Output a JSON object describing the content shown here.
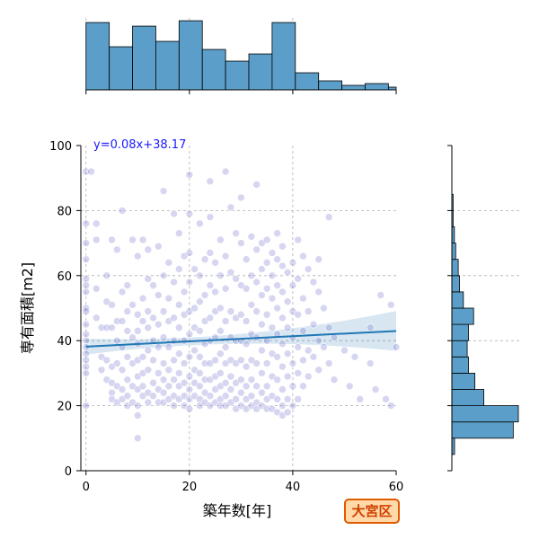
{
  "badge": "大宮区",
  "chart_data": {
    "type": "scatter",
    "xlabel": "築年数[年]",
    "ylabel": "専有面積[m2]",
    "xlim": [
      -1,
      60
    ],
    "ylim": [
      0,
      100
    ],
    "xticks": [
      "0",
      "20",
      "40",
      "60"
    ],
    "yticks": [
      "0",
      "20",
      "40",
      "60",
      "80",
      "100"
    ],
    "grid": true,
    "regression": {
      "slope": 0.08,
      "intercept": 38.17,
      "label": "y=0.08x+38.17",
      "color": "#1f77b4"
    },
    "point_color": "#6a6acd",
    "hist_color": "#5b9ec9",
    "x_hist": {
      "bin_edges": [
        0,
        4.5,
        9,
        13.5,
        18,
        22.5,
        27,
        31.5,
        36,
        40.5,
        45,
        49.5,
        54,
        58.5,
        60
      ],
      "counts": [
        75,
        48,
        71,
        54,
        77,
        45,
        32,
        40,
        75,
        19,
        10,
        5,
        7,
        3
      ]
    },
    "y_hist": {
      "bin_edges": [
        10,
        15,
        20,
        25,
        30,
        35,
        40,
        45,
        50,
        55,
        60,
        65,
        70,
        75,
        80,
        85,
        90,
        95,
        100
      ],
      "counts": [
        48,
        52,
        25,
        18,
        13,
        12,
        13,
        17,
        9,
        6,
        5,
        3,
        2,
        1,
        1,
        0,
        0,
        0
      ]
    },
    "points": [
      [
        0,
        92
      ],
      [
        1,
        92
      ],
      [
        0,
        76
      ],
      [
        0,
        70
      ],
      [
        0,
        65
      ],
      [
        0,
        59
      ],
      [
        0,
        57
      ],
      [
        0,
        55
      ],
      [
        0,
        50
      ],
      [
        0,
        49
      ],
      [
        0,
        45
      ],
      [
        0,
        42
      ],
      [
        0,
        40
      ],
      [
        0,
        38
      ],
      [
        0,
        36
      ],
      [
        0,
        34
      ],
      [
        0,
        32
      ],
      [
        0,
        30
      ],
      [
        0,
        20
      ],
      [
        2,
        76
      ],
      [
        2,
        71
      ],
      [
        2,
        56
      ],
      [
        2,
        47
      ],
      [
        3,
        44
      ],
      [
        3,
        35
      ],
      [
        3,
        31
      ],
      [
        4,
        60
      ],
      [
        4,
        52
      ],
      [
        4,
        44
      ],
      [
        4,
        34
      ],
      [
        4,
        28
      ],
      [
        5,
        71
      ],
      [
        5,
        51
      ],
      [
        5,
        44
      ],
      [
        5,
        32
      ],
      [
        5,
        27
      ],
      [
        5,
        24
      ],
      [
        5,
        22
      ],
      [
        6,
        68
      ],
      [
        6,
        46
      ],
      [
        6,
        40
      ],
      [
        6,
        33
      ],
      [
        6,
        26
      ],
      [
        6,
        21
      ],
      [
        7,
        80
      ],
      [
        7,
        55
      ],
      [
        7,
        46
      ],
      [
        7,
        38
      ],
      [
        7,
        31
      ],
      [
        7,
        25
      ],
      [
        7,
        22
      ],
      [
        8,
        57
      ],
      [
        8,
        49
      ],
      [
        8,
        43
      ],
      [
        8,
        35
      ],
      [
        8,
        28
      ],
      [
        8,
        23
      ],
      [
        8,
        20
      ],
      [
        9,
        71
      ],
      [
        9,
        51
      ],
      [
        9,
        41
      ],
      [
        9,
        33
      ],
      [
        9,
        26
      ],
      [
        9,
        21
      ],
      [
        10,
        66
      ],
      [
        10,
        48
      ],
      [
        10,
        43
      ],
      [
        10,
        39
      ],
      [
        10,
        34
      ],
      [
        10,
        29
      ],
      [
        10,
        25
      ],
      [
        10,
        20
      ],
      [
        10,
        17
      ],
      [
        10,
        10
      ],
      [
        11,
        71
      ],
      [
        11,
        53
      ],
      [
        11,
        46
      ],
      [
        11,
        35
      ],
      [
        11,
        30
      ],
      [
        11,
        26
      ],
      [
        11,
        23
      ],
      [
        12,
        68
      ],
      [
        12,
        59
      ],
      [
        12,
        49
      ],
      [
        12,
        44
      ],
      [
        12,
        37
      ],
      [
        12,
        31
      ],
      [
        12,
        24
      ],
      [
        12,
        21
      ],
      [
        13,
        57
      ],
      [
        13,
        47
      ],
      [
        13,
        40
      ],
      [
        13,
        34
      ],
      [
        13,
        27
      ],
      [
        13,
        23
      ],
      [
        14,
        69
      ],
      [
        14,
        54
      ],
      [
        14,
        45
      ],
      [
        14,
        38
      ],
      [
        14,
        30
      ],
      [
        14,
        25
      ],
      [
        14,
        21
      ],
      [
        15,
        86
      ],
      [
        15,
        60
      ],
      [
        15,
        49
      ],
      [
        15,
        41
      ],
      [
        15,
        33
      ],
      [
        15,
        28
      ],
      [
        15,
        24
      ],
      [
        15,
        21
      ],
      [
        16,
        64
      ],
      [
        16,
        53
      ],
      [
        16,
        46
      ],
      [
        16,
        38
      ],
      [
        16,
        31
      ],
      [
        16,
        26
      ],
      [
        16,
        22
      ],
      [
        17,
        79
      ],
      [
        17,
        58
      ],
      [
        17,
        47
      ],
      [
        17,
        40
      ],
      [
        17,
        34
      ],
      [
        17,
        28
      ],
      [
        17,
        23
      ],
      [
        17,
        20
      ],
      [
        18,
        73
      ],
      [
        18,
        62
      ],
      [
        18,
        51
      ],
      [
        18,
        44
      ],
      [
        18,
        36
      ],
      [
        18,
        30
      ],
      [
        18,
        26
      ],
      [
        18,
        22
      ],
      [
        19,
        66
      ],
      [
        19,
        55
      ],
      [
        19,
        48
      ],
      [
        19,
        40
      ],
      [
        19,
        33
      ],
      [
        19,
        27
      ],
      [
        19,
        23
      ],
      [
        19,
        20
      ],
      [
        20,
        91
      ],
      [
        20,
        79
      ],
      [
        20,
        67
      ],
      [
        20,
        58
      ],
      [
        20,
        49
      ],
      [
        20,
        42
      ],
      [
        20,
        35
      ],
      [
        20,
        29
      ],
      [
        20,
        25
      ],
      [
        20,
        22
      ],
      [
        20,
        19
      ],
      [
        21,
        62
      ],
      [
        21,
        50
      ],
      [
        21,
        44
      ],
      [
        21,
        37
      ],
      [
        21,
        31
      ],
      [
        21,
        27
      ],
      [
        21,
        23
      ],
      [
        22,
        76
      ],
      [
        22,
        60
      ],
      [
        22,
        52
      ],
      [
        22,
        43
      ],
      [
        22,
        35
      ],
      [
        22,
        30
      ],
      [
        22,
        26
      ],
      [
        22,
        22
      ],
      [
        22,
        20
      ],
      [
        23,
        65
      ],
      [
        23,
        54
      ],
      [
        23,
        46
      ],
      [
        23,
        39
      ],
      [
        23,
        33
      ],
      [
        23,
        28
      ],
      [
        23,
        24
      ],
      [
        23,
        21
      ],
      [
        24,
        89
      ],
      [
        24,
        78
      ],
      [
        24,
        67
      ],
      [
        24,
        57
      ],
      [
        24,
        47
      ],
      [
        24,
        40
      ],
      [
        24,
        33
      ],
      [
        24,
        28
      ],
      [
        24,
        23
      ],
      [
        24,
        20
      ],
      [
        25,
        64
      ],
      [
        25,
        55
      ],
      [
        25,
        49
      ],
      [
        25,
        41
      ],
      [
        25,
        34
      ],
      [
        25,
        29
      ],
      [
        25,
        25
      ],
      [
        25,
        21
      ],
      [
        26,
        71
      ],
      [
        26,
        60
      ],
      [
        26,
        50
      ],
      [
        26,
        43
      ],
      [
        26,
        36
      ],
      [
        26,
        30
      ],
      [
        26,
        26
      ],
      [
        26,
        22
      ],
      [
        26,
        20
      ],
      [
        27,
        92
      ],
      [
        27,
        66
      ],
      [
        27,
        56
      ],
      [
        27,
        46
      ],
      [
        27,
        38
      ],
      [
        27,
        33
      ],
      [
        27,
        27
      ],
      [
        27,
        23
      ],
      [
        27,
        20
      ],
      [
        28,
        81
      ],
      [
        28,
        61
      ],
      [
        28,
        49
      ],
      [
        28,
        41
      ],
      [
        28,
        34
      ],
      [
        28,
        29
      ],
      [
        28,
        25
      ],
      [
        28,
        21
      ],
      [
        29,
        73
      ],
      [
        29,
        59
      ],
      [
        29,
        47
      ],
      [
        29,
        40
      ],
      [
        29,
        33
      ],
      [
        29,
        27
      ],
      [
        29,
        22
      ],
      [
        29,
        19
      ],
      [
        30,
        84
      ],
      [
        30,
        70
      ],
      [
        30,
        57
      ],
      [
        30,
        48
      ],
      [
        30,
        40
      ],
      [
        30,
        34
      ],
      [
        30,
        28
      ],
      [
        30,
        24
      ],
      [
        30,
        20
      ],
      [
        31,
        65
      ],
      [
        31,
        56
      ],
      [
        31,
        46
      ],
      [
        31,
        39
      ],
      [
        31,
        32
      ],
      [
        31,
        26
      ],
      [
        31,
        22
      ],
      [
        31,
        19
      ],
      [
        32,
        72
      ],
      [
        32,
        60
      ],
      [
        32,
        51
      ],
      [
        32,
        42
      ],
      [
        32,
        34
      ],
      [
        32,
        28
      ],
      [
        32,
        23
      ],
      [
        32,
        20
      ],
      [
        33,
        88
      ],
      [
        33,
        68
      ],
      [
        33,
        58
      ],
      [
        33,
        49
      ],
      [
        33,
        41
      ],
      [
        33,
        33
      ],
      [
        33,
        26
      ],
      [
        33,
        21
      ],
      [
        33,
        19
      ],
      [
        34,
        70
      ],
      [
        34,
        62
      ],
      [
        34,
        54
      ],
      [
        34,
        45
      ],
      [
        34,
        37
      ],
      [
        34,
        30
      ],
      [
        34,
        24
      ],
      [
        34,
        20
      ],
      [
        35,
        71
      ],
      [
        35,
        64
      ],
      [
        35,
        56
      ],
      [
        35,
        48
      ],
      [
        35,
        40
      ],
      [
        35,
        33
      ],
      [
        35,
        26
      ],
      [
        35,
        22
      ],
      [
        35,
        19
      ],
      [
        36,
        67
      ],
      [
        36,
        60
      ],
      [
        36,
        53
      ],
      [
        36,
        44
      ],
      [
        36,
        36
      ],
      [
        36,
        29
      ],
      [
        36,
        23
      ],
      [
        36,
        19
      ],
      [
        37,
        73
      ],
      [
        37,
        65
      ],
      [
        37,
        57
      ],
      [
        37,
        50
      ],
      [
        37,
        42
      ],
      [
        37,
        35
      ],
      [
        37,
        28
      ],
      [
        37,
        22
      ],
      [
        37,
        18
      ],
      [
        38,
        69
      ],
      [
        38,
        63
      ],
      [
        38,
        55
      ],
      [
        38,
        47
      ],
      [
        38,
        39
      ],
      [
        38,
        32
      ],
      [
        38,
        25
      ],
      [
        38,
        20
      ],
      [
        38,
        17
      ],
      [
        39,
        61
      ],
      [
        39,
        52
      ],
      [
        39,
        44
      ],
      [
        39,
        36
      ],
      [
        39,
        29
      ],
      [
        39,
        22
      ],
      [
        39,
        18
      ],
      [
        40,
        64
      ],
      [
        40,
        57
      ],
      [
        40,
        49
      ],
      [
        40,
        41
      ],
      [
        40,
        33
      ],
      [
        40,
        26
      ],
      [
        40,
        20
      ],
      [
        41,
        71
      ],
      [
        41,
        59
      ],
      [
        41,
        48
      ],
      [
        41,
        38
      ],
      [
        41,
        30
      ],
      [
        41,
        22
      ],
      [
        42,
        66
      ],
      [
        42,
        53
      ],
      [
        42,
        43
      ],
      [
        42,
        34
      ],
      [
        42,
        26
      ],
      [
        43,
        62
      ],
      [
        43,
        49
      ],
      [
        43,
        37
      ],
      [
        43,
        29
      ],
      [
        44,
        58
      ],
      [
        44,
        45
      ],
      [
        44,
        35
      ],
      [
        45,
        65
      ],
      [
        45,
        55
      ],
      [
        45,
        40
      ],
      [
        45,
        31
      ],
      [
        46,
        50
      ],
      [
        46,
        38
      ],
      [
        47,
        78
      ],
      [
        47,
        44
      ],
      [
        47,
        33
      ],
      [
        48,
        41
      ],
      [
        48,
        28
      ],
      [
        50,
        37
      ],
      [
        51,
        26
      ],
      [
        52,
        35
      ],
      [
        53,
        22
      ],
      [
        55,
        44
      ],
      [
        55,
        33
      ],
      [
        56,
        25
      ],
      [
        57,
        54
      ],
      [
        58,
        22
      ],
      [
        59,
        51
      ],
      [
        59,
        20
      ],
      [
        60,
        38
      ]
    ]
  }
}
